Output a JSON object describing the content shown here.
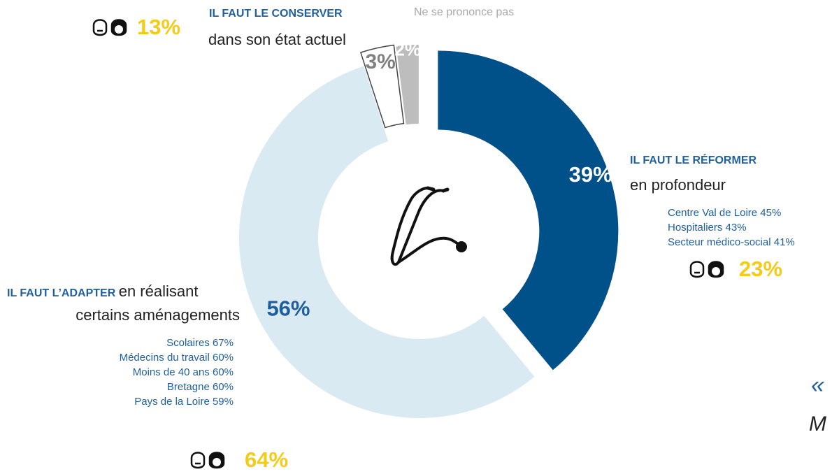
{
  "chart_data": {
    "type": "pie",
    "slices": [
      {
        "label": "IL FAUT LE RÉFORMER en profondeur",
        "value": 39,
        "value_label": "39%",
        "color": "#00508a",
        "label_color": "#ffffff"
      },
      {
        "label": "IL FAUT L’ADAPTER en réalisant certains aménagements",
        "value": 56,
        "value_label": "56%",
        "color": "#daeaf2",
        "label_color": "#1f5f9e"
      },
      {
        "label": "IL FAUT LE CONSERVER dans son état actuel",
        "value": 3,
        "value_label": "3%",
        "color": "#ffffff",
        "label_color": "#808080"
      },
      {
        "label": "Ne se prononce pas",
        "value": 2,
        "value_label": "2%",
        "color": "#bdbdbd",
        "label_color": "#ffffff"
      }
    ]
  },
  "annotations": {
    "conserver": {
      "title": "IL FAUT LE CONSERVER",
      "text": "dans son état actuel",
      "compare": "13%"
    },
    "nsp": {
      "text": "Ne se prononce pas"
    },
    "reformer": {
      "title": "IL FAUT LE RÉFORMER",
      "text": "en profondeur",
      "subgroups": [
        "Centre Val de Loire 45%",
        "Hospitaliers 43%",
        "Secteur médico-social 41%"
      ],
      "compare": "23%"
    },
    "adapter": {
      "title": "IL FAUT L’ADAPTER",
      "text_inline": "en réalisant",
      "text_line2": "certains aménagements",
      "subgroups": [
        "Scolaires 67%",
        "Médecins du travail 60%",
        "Moins de 40 ans 60%",
        "Bretagne 60%",
        "Pays de la Loire 59%"
      ],
      "compare": "64%"
    }
  },
  "quote": {
    "mark": "«",
    "text": "M"
  },
  "icons": {
    "center": "stethoscope-icon",
    "compare": "people-faces-icon"
  },
  "colors": {
    "accent_yellow": "#f2cc18",
    "label_blue": "#1f5f9e"
  }
}
